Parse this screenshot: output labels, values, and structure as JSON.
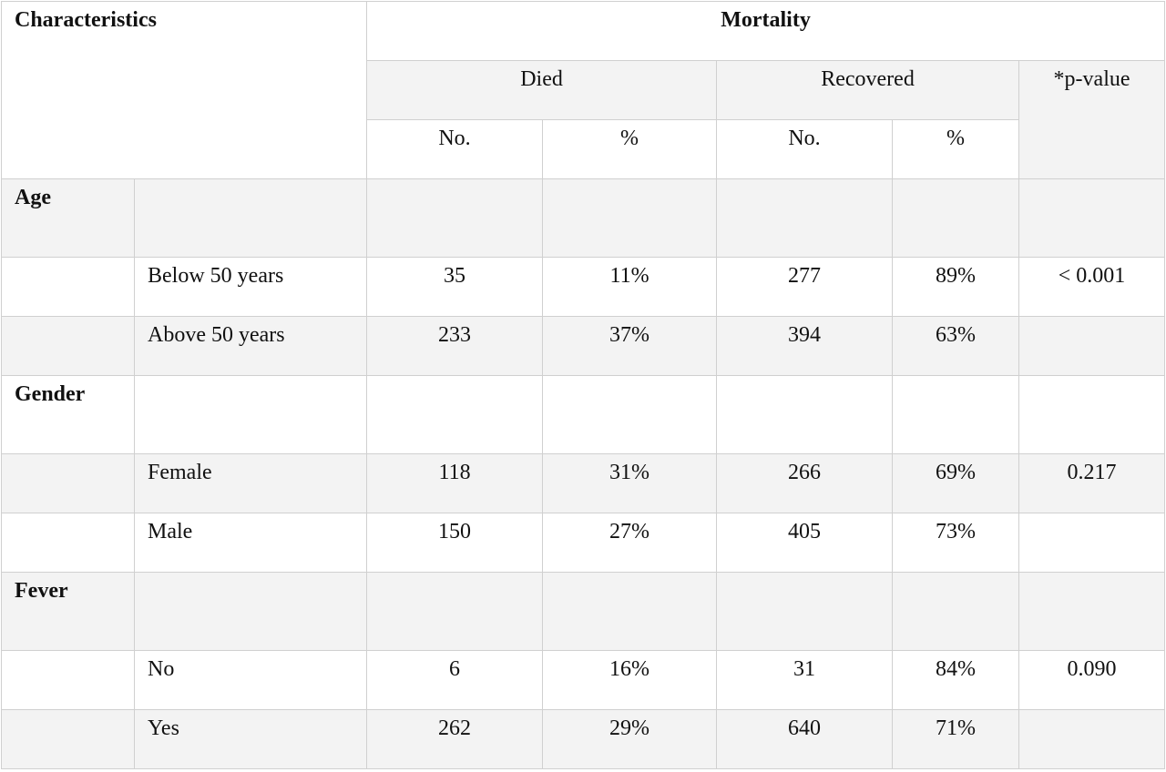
{
  "table": {
    "header": {
      "characteristics": "Characteristics",
      "mortality": "Mortality",
      "died": "Died",
      "recovered": "Recovered",
      "p_value": "*p-value",
      "died_no": "No.",
      "died_pct": "%",
      "recovered_no": "No.",
      "recovered_pct": "%"
    },
    "groups": [
      {
        "label": "Age",
        "rows": [
          {
            "label": "Below 50 years",
            "died_no": "35",
            "died_pct": "11%",
            "recovered_no": "277",
            "recovered_pct": "89%",
            "p": "< 0.001"
          },
          {
            "label": "Above 50 years",
            "died_no": "233",
            "died_pct": "37%",
            "recovered_no": "394",
            "recovered_pct": "63%",
            "p": ""
          }
        ]
      },
      {
        "label": "Gender",
        "rows": [
          {
            "label": "Female",
            "died_no": "118",
            "died_pct": "31%",
            "recovered_no": "266",
            "recovered_pct": "69%",
            "p": "0.217"
          },
          {
            "label": "Male",
            "died_no": "150",
            "died_pct": "27%",
            "recovered_no": "405",
            "recovered_pct": "73%",
            "p": ""
          }
        ]
      },
      {
        "label": "Fever",
        "rows": [
          {
            "label": "No",
            "died_no": "6",
            "died_pct": "16%",
            "recovered_no": "31",
            "recovered_pct": "84%",
            "p": "0.090"
          },
          {
            "label": "Yes",
            "died_no": "262",
            "died_pct": "29%",
            "recovered_no": "640",
            "recovered_pct": "71%",
            "p": ""
          }
        ]
      }
    ]
  }
}
